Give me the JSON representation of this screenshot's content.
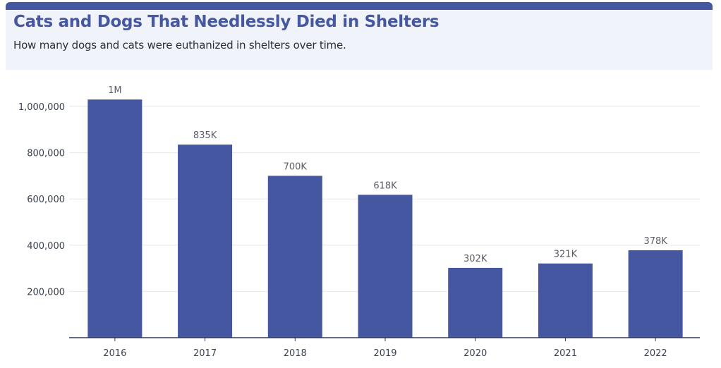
{
  "header": {
    "title": "Cats and Dogs That Needlessly Died in Shelters",
    "subtitle": "How many dogs and cats were euthanized in shelters over time."
  },
  "colors": {
    "accent": "#4557a1",
    "bar": "#4557a1",
    "header_bg": "#f0f3f9",
    "grid": "#e8e8ec",
    "axis": "#2f3a5a"
  },
  "chart_data": {
    "type": "bar",
    "title": "Cats and Dogs That Needlessly Died in Shelters",
    "subtitle": "How many dogs and cats were euthanized in shelters over time.",
    "xlabel": "",
    "ylabel": "",
    "categories": [
      "2016",
      "2017",
      "2018",
      "2019",
      "2020",
      "2021",
      "2022"
    ],
    "values": [
      1030000,
      835000,
      700000,
      618000,
      302000,
      321000,
      378000
    ],
    "data_labels": [
      "1M",
      "835K",
      "700K",
      "618K",
      "302K",
      "321K",
      "378K"
    ],
    "yticks": [
      200000,
      400000,
      600000,
      800000,
      1000000
    ],
    "ytick_labels": [
      "200,000",
      "400,000",
      "600,000",
      "800,000",
      "1,000,000"
    ],
    "ylim": [
      0,
      1000000
    ],
    "grid": true,
    "legend": "none"
  }
}
